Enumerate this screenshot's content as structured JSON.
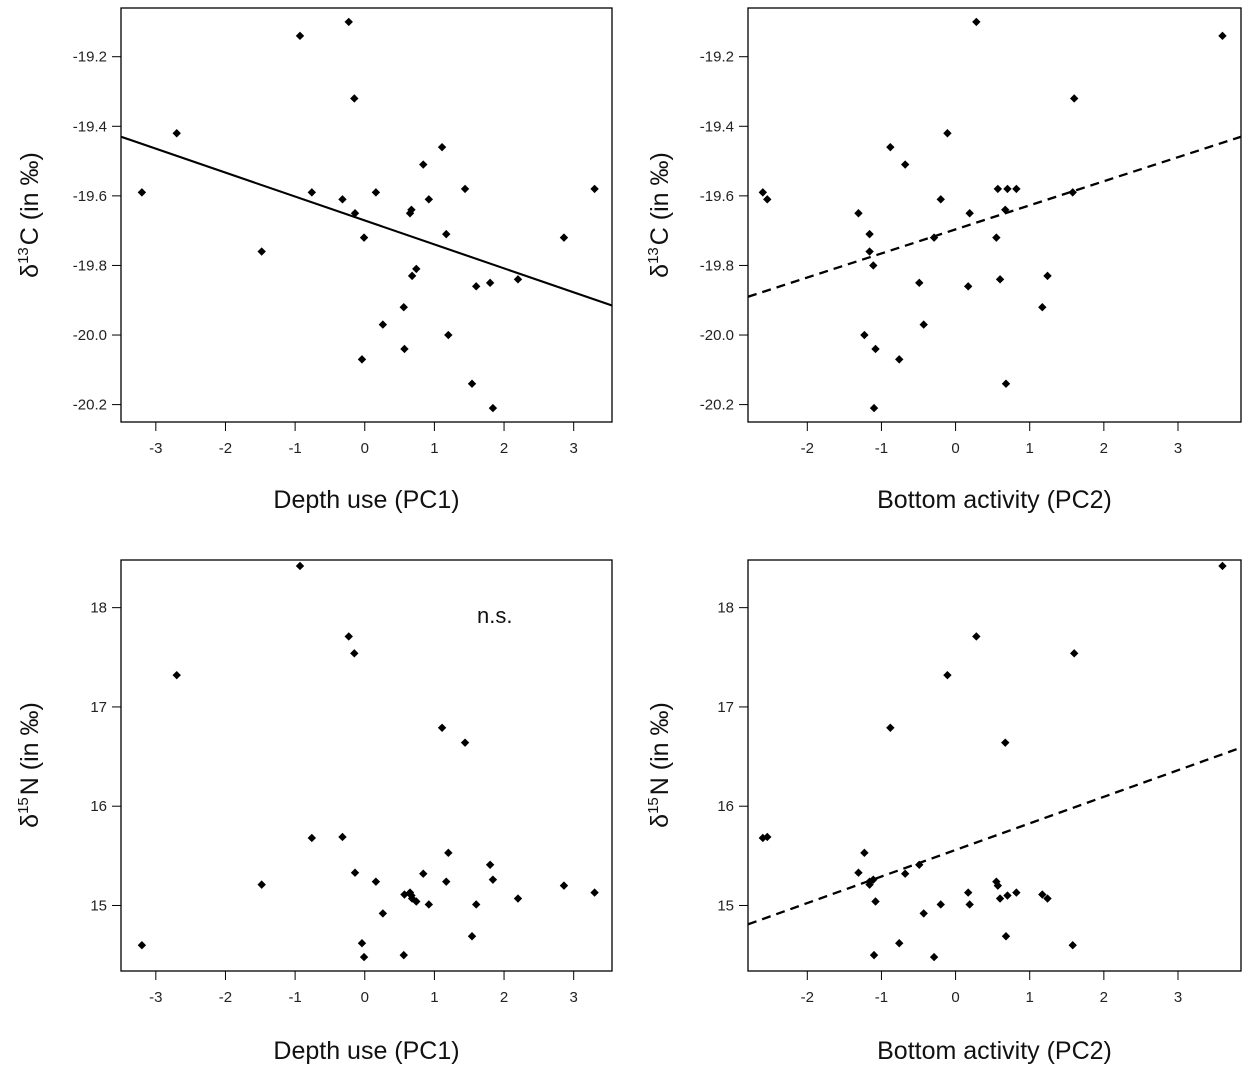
{
  "chart_data": [
    {
      "type": "scatter",
      "xlabel": "Depth use (PC1)",
      "ylabel": {
        "delta": "δ",
        "sup": "13",
        "rest": "C (in  ‰)"
      },
      "xlim": [
        -3.5,
        3.55
      ],
      "ylim": [
        -20.25,
        -19.06
      ],
      "xticks": [
        -3,
        -2,
        -1,
        0,
        1,
        2,
        3
      ],
      "yticks": [
        -19.2,
        -19.4,
        -19.6,
        -19.8,
        -20.0,
        -20.2
      ],
      "ytick_labels": [
        "-19.2",
        "-19.4",
        "-19.6",
        "-19.8",
        "-20.0",
        "-20.2"
      ],
      "grid": false,
      "annotation": "",
      "fit_line": {
        "style": "solid",
        "x": [
          -3.5,
          3.55
        ],
        "y": [
          -19.43,
          -19.915
        ]
      },
      "points": [
        {
          "x": -3.2,
          "y": -19.59
        },
        {
          "x": -2.7,
          "y": -19.42
        },
        {
          "x": -1.48,
          "y": -19.76
        },
        {
          "x": -0.93,
          "y": -19.14
        },
        {
          "x": -0.76,
          "y": -19.59
        },
        {
          "x": -0.32,
          "y": -19.61
        },
        {
          "x": -0.23,
          "y": -19.1
        },
        {
          "x": -0.15,
          "y": -19.32
        },
        {
          "x": -0.14,
          "y": -19.65
        },
        {
          "x": -0.04,
          "y": -20.07
        },
        {
          "x": -0.01,
          "y": -19.72
        },
        {
          "x": 0.16,
          "y": -19.59
        },
        {
          "x": 0.26,
          "y": -19.97
        },
        {
          "x": 0.56,
          "y": -19.92
        },
        {
          "x": 0.57,
          "y": -20.04
        },
        {
          "x": 0.65,
          "y": -19.65
        },
        {
          "x": 0.67,
          "y": -19.64
        },
        {
          "x": 0.68,
          "y": -19.83
        },
        {
          "x": 0.74,
          "y": -19.81
        },
        {
          "x": 0.84,
          "y": -19.51
        },
        {
          "x": 0.92,
          "y": -19.61
        },
        {
          "x": 1.11,
          "y": -19.46
        },
        {
          "x": 1.17,
          "y": -19.71
        },
        {
          "x": 1.2,
          "y": -20.0
        },
        {
          "x": 1.44,
          "y": -19.58
        },
        {
          "x": 1.54,
          "y": -20.14
        },
        {
          "x": 1.6,
          "y": -19.86
        },
        {
          "x": 1.8,
          "y": -19.85
        },
        {
          "x": 1.84,
          "y": -20.21
        },
        {
          "x": 2.2,
          "y": -19.84
        },
        {
          "x": 2.86,
          "y": -19.72
        },
        {
          "x": 3.3,
          "y": -19.58
        }
      ]
    },
    {
      "type": "scatter",
      "xlabel": "Bottom activity (PC2)",
      "ylabel": {
        "delta": "δ",
        "sup": "13",
        "rest": "C (in  ‰)"
      },
      "xlim": [
        -2.8,
        3.85
      ],
      "ylim": [
        -20.25,
        -19.06
      ],
      "xticks": [
        -2,
        -1,
        0,
        1,
        2,
        3
      ],
      "yticks": [
        -19.2,
        -19.4,
        -19.6,
        -19.8,
        -20.0,
        -20.2
      ],
      "ytick_labels": [
        "-19.2",
        "-19.4",
        "-19.6",
        "-19.8",
        "-20.0",
        "-20.2"
      ],
      "grid": false,
      "annotation": "",
      "fit_line": {
        "style": "dashed",
        "x": [
          -2.8,
          3.85
        ],
        "y": [
          -19.89,
          -19.43
        ]
      },
      "points": [
        {
          "x": -2.6,
          "y": -19.59
        },
        {
          "x": -2.54,
          "y": -19.61
        },
        {
          "x": -1.31,
          "y": -19.65
        },
        {
          "x": -1.23,
          "y": -20.0
        },
        {
          "x": -1.16,
          "y": -19.71
        },
        {
          "x": -1.16,
          "y": -19.76
        },
        {
          "x": -1.11,
          "y": -19.8
        },
        {
          "x": -1.08,
          "y": -20.04
        },
        {
          "x": -1.1,
          "y": -20.21
        },
        {
          "x": -0.88,
          "y": -19.46
        },
        {
          "x": -0.76,
          "y": -20.07
        },
        {
          "x": -0.68,
          "y": -19.51
        },
        {
          "x": -0.49,
          "y": -19.85
        },
        {
          "x": -0.43,
          "y": -19.97
        },
        {
          "x": -0.29,
          "y": -19.72
        },
        {
          "x": -0.2,
          "y": -19.61
        },
        {
          "x": -0.11,
          "y": -19.42
        },
        {
          "x": 0.17,
          "y": -19.86
        },
        {
          "x": 0.19,
          "y": -19.65
        },
        {
          "x": 0.28,
          "y": -19.1
        },
        {
          "x": 0.55,
          "y": -19.72
        },
        {
          "x": 0.57,
          "y": -19.58
        },
        {
          "x": 0.6,
          "y": -19.84
        },
        {
          "x": 0.67,
          "y": -19.64
        },
        {
          "x": 0.68,
          "y": -20.14
        },
        {
          "x": 0.7,
          "y": -19.58
        },
        {
          "x": 0.82,
          "y": -19.58
        },
        {
          "x": 1.17,
          "y": -19.92
        },
        {
          "x": 1.24,
          "y": -19.83
        },
        {
          "x": 1.58,
          "y": -19.59
        },
        {
          "x": 1.6,
          "y": -19.32
        },
        {
          "x": 3.6,
          "y": -19.14
        }
      ]
    },
    {
      "type": "scatter",
      "xlabel": "Depth use (PC1)",
      "ylabel": {
        "delta": "δ",
        "sup": "15",
        "rest": "N (in  ‰)"
      },
      "xlim": [
        -3.5,
        3.55
      ],
      "ylim": [
        14.34,
        18.48
      ],
      "xticks": [
        -3,
        -2,
        -1,
        0,
        1,
        2,
        3
      ],
      "yticks": [
        15,
        16,
        17,
        18
      ],
      "ytick_labels": [
        "15",
        "16",
        "17",
        "18"
      ],
      "grid": false,
      "annotation": "n.s.",
      "fit_line": null,
      "points": [
        {
          "x": -3.2,
          "y": 14.6
        },
        {
          "x": -2.7,
          "y": 17.32
        },
        {
          "x": -1.48,
          "y": 15.21
        },
        {
          "x": -0.93,
          "y": 18.42
        },
        {
          "x": -0.76,
          "y": 15.68
        },
        {
          "x": -0.32,
          "y": 15.69
        },
        {
          "x": -0.23,
          "y": 17.71
        },
        {
          "x": -0.15,
          "y": 17.54
        },
        {
          "x": -0.14,
          "y": 15.33
        },
        {
          "x": -0.04,
          "y": 14.62
        },
        {
          "x": -0.01,
          "y": 14.48
        },
        {
          "x": 0.16,
          "y": 15.24
        },
        {
          "x": 0.26,
          "y": 14.92
        },
        {
          "x": 0.56,
          "y": 14.5
        },
        {
          "x": 0.57,
          "y": 15.11
        },
        {
          "x": 0.65,
          "y": 15.13
        },
        {
          "x": 0.67,
          "y": 15.1
        },
        {
          "x": 0.68,
          "y": 15.07
        },
        {
          "x": 0.74,
          "y": 15.04
        },
        {
          "x": 0.84,
          "y": 15.32
        },
        {
          "x": 0.92,
          "y": 15.01
        },
        {
          "x": 1.11,
          "y": 16.79
        },
        {
          "x": 1.17,
          "y": 15.24
        },
        {
          "x": 1.2,
          "y": 15.53
        },
        {
          "x": 1.44,
          "y": 16.64
        },
        {
          "x": 1.54,
          "y": 14.69
        },
        {
          "x": 1.6,
          "y": 15.01
        },
        {
          "x": 1.8,
          "y": 15.41
        },
        {
          "x": 1.84,
          "y": 15.26
        },
        {
          "x": 2.2,
          "y": 15.07
        },
        {
          "x": 2.86,
          "y": 15.2
        },
        {
          "x": 3.3,
          "y": 15.13
        }
      ]
    },
    {
      "type": "scatter",
      "xlabel": "Bottom activity (PC2)",
      "ylabel": {
        "delta": "δ",
        "sup": "15",
        "rest": "N (in  ‰)"
      },
      "xlim": [
        -2.8,
        3.85
      ],
      "ylim": [
        14.34,
        18.48
      ],
      "xticks": [
        -2,
        -1,
        0,
        1,
        2,
        3
      ],
      "yticks": [
        15,
        16,
        17,
        18
      ],
      "ytick_labels": [
        "15",
        "16",
        "17",
        "18"
      ],
      "grid": false,
      "annotation": "",
      "fit_line": {
        "style": "dashed",
        "x": [
          -2.8,
          3.85
        ],
        "y": [
          14.81,
          16.59
        ]
      },
      "points": [
        {
          "x": -2.6,
          "y": 15.68
        },
        {
          "x": -2.54,
          "y": 15.69
        },
        {
          "x": -1.31,
          "y": 15.33
        },
        {
          "x": -1.23,
          "y": 15.53
        },
        {
          "x": -1.16,
          "y": 15.24
        },
        {
          "x": -1.16,
          "y": 15.21
        },
        {
          "x": -1.11,
          "y": 15.26
        },
        {
          "x": -1.08,
          "y": 15.04
        },
        {
          "x": -1.1,
          "y": 14.5
        },
        {
          "x": -0.88,
          "y": 16.79
        },
        {
          "x": -0.76,
          "y": 14.62
        },
        {
          "x": -0.68,
          "y": 15.32
        },
        {
          "x": -0.49,
          "y": 15.41
        },
        {
          "x": -0.43,
          "y": 14.92
        },
        {
          "x": -0.29,
          "y": 14.48
        },
        {
          "x": -0.2,
          "y": 15.01
        },
        {
          "x": -0.11,
          "y": 17.32
        },
        {
          "x": 0.17,
          "y": 15.13
        },
        {
          "x": 0.19,
          "y": 15.01
        },
        {
          "x": 0.28,
          "y": 17.71
        },
        {
          "x": 0.55,
          "y": 15.24
        },
        {
          "x": 0.57,
          "y": 15.2
        },
        {
          "x": 0.6,
          "y": 15.07
        },
        {
          "x": 0.67,
          "y": 16.64
        },
        {
          "x": 0.68,
          "y": 14.69
        },
        {
          "x": 0.7,
          "y": 15.1
        },
        {
          "x": 0.82,
          "y": 15.13
        },
        {
          "x": 1.17,
          "y": 15.11
        },
        {
          "x": 1.24,
          "y": 15.07
        },
        {
          "x": 1.58,
          "y": 14.6
        },
        {
          "x": 1.6,
          "y": 17.54
        },
        {
          "x": 3.6,
          "y": 18.42
        }
      ]
    }
  ]
}
